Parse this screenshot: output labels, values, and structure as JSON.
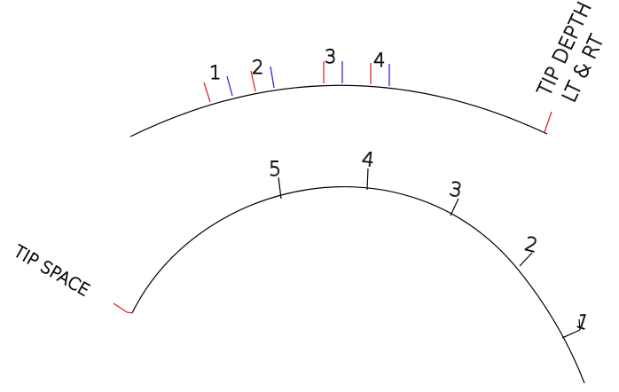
{
  "colors": {
    "line": "#000000",
    "red": "#e0262b",
    "blue": "#2d2dd6"
  },
  "upper_arc": {
    "labels": {
      "p1": "1",
      "p2": "2",
      "p3": "3",
      "p4": "4"
    },
    "tip_depth_line1": "TIP DEPTH",
    "tip_depth_line2": "LT & RT"
  },
  "lower_arc": {
    "labels": {
      "p1": "1",
      "p2": "2",
      "p3": "3",
      "p4": "4",
      "p5": "5"
    },
    "tip_space": "TIP SPACE"
  }
}
